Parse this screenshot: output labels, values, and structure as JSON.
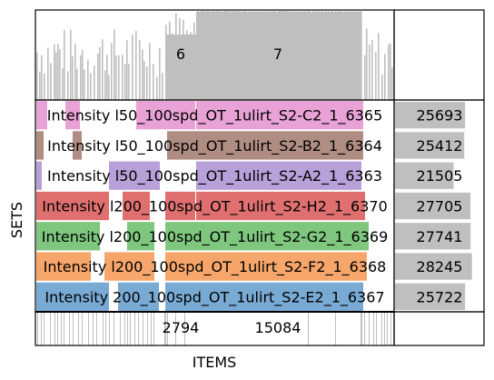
{
  "chart_data": {
    "type": "bar",
    "chart_kind": "upset-style-matrix",
    "xlabel": "ITEMS",
    "ylabel": "SETS",
    "grid": false,
    "colors": {
      "bar": "#bfbfbf",
      "bar_edge": "#a6a6a6",
      "frame": "#000000"
    },
    "top_bar_labels": [
      "6",
      "7"
    ],
    "bottom_labels": [
      "2794",
      "15084"
    ],
    "sets": [
      {
        "label": "Intensity l50_100spd_OT_1ulirt_S2-C2_1_6365",
        "count": 25693,
        "color": "#e8a2d6",
        "count_label": "25693"
      },
      {
        "label": "Intensity l50_100spd_OT_1ulirt_S2-B2_1_6364",
        "count": 25412,
        "color": "#b08d82",
        "count_label": "25412"
      },
      {
        "label": "Intensity l50_100spd_OT_1ulirt_S2-A2_1_6363",
        "count": 21505,
        "color": "#b8a0d8",
        "count_label": "21505"
      },
      {
        "label": "Intensity l200_100spd_OT_1ulirt_S2-H2_1_6370",
        "count": 27705,
        "color": "#e07070",
        "count_label": "27705"
      },
      {
        "label": "Intensity l200_100spd_OT_1ulirt_S2-G2_1_6369",
        "count": 27741,
        "color": "#7fc77f",
        "count_label": "27741"
      },
      {
        "label": "Intensity l200_100spd_OT_1ulirt_S2-F2_1_6368",
        "count": 28245,
        "color": "#f6a66a",
        "count_label": "28245"
      },
      {
        "label": "Intensity 200_100spd_OT_1ulirt_S2-E2_1_6367",
        "count": 25722,
        "color": "#78aad4",
        "count_label": "25722"
      }
    ],
    "set_size_max": 31000
  }
}
